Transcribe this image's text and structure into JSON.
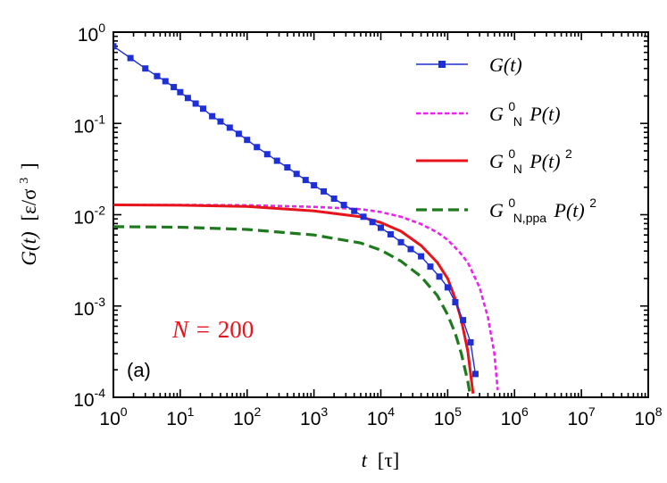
{
  "chart_data": {
    "type": "line",
    "xscale": "log",
    "yscale": "log",
    "xlim": [
      1,
      100000000
    ],
    "ylim": [
      0.0001,
      1
    ],
    "x_ticks": [
      {
        "mant": "10",
        "exp": "0",
        "value": 1
      },
      {
        "mant": "10",
        "exp": "1",
        "value": 10
      },
      {
        "mant": "10",
        "exp": "2",
        "value": 100
      },
      {
        "mant": "10",
        "exp": "3",
        "value": 1000
      },
      {
        "mant": "10",
        "exp": "4",
        "value": 10000
      },
      {
        "mant": "10",
        "exp": "5",
        "value": 100000
      },
      {
        "mant": "10",
        "exp": "6",
        "value": 1000000
      },
      {
        "mant": "10",
        "exp": "7",
        "value": 10000000
      },
      {
        "mant": "10",
        "exp": "8",
        "value": 100000000
      }
    ],
    "y_ticks": [
      {
        "mant": "10",
        "exp": "0",
        "value": 1
      },
      {
        "mant": "10",
        "exp": "-1",
        "value": 0.1
      },
      {
        "mant": "10",
        "exp": "-2",
        "value": 0.01
      },
      {
        "mant": "10",
        "exp": "-3",
        "value": 0.001
      },
      {
        "mant": "10",
        "exp": "-4",
        "value": 0.0001
      }
    ],
    "xlabel": {
      "var": "t",
      "unit": "[τ]"
    },
    "ylabel": {
      "var": "G(t)",
      "unit": "[ε/σ",
      "unit_exp": "3",
      "unit_close": "]"
    },
    "annotations": {
      "n_label": "N",
      "n_eq": "=",
      "n_value": "200",
      "panel": "(a)"
    },
    "legend_position": "top-right",
    "series": [
      {
        "name": "G(t)",
        "legend": {
          "base": "G(t)"
        },
        "color": "#1f2fd6",
        "style": "solid-markers",
        "x": [
          1,
          1.8,
          3,
          4.5,
          6,
          8,
          10,
          13,
          17,
          22,
          30,
          40,
          55,
          75,
          100,
          140,
          200,
          280,
          400,
          550,
          750,
          1000,
          1400,
          2000,
          2800,
          4000,
          5500,
          7500,
          10000,
          14000,
          20000,
          28000,
          40000,
          55000,
          75000,
          100000,
          130000,
          170000,
          220000,
          260000
        ],
        "values": [
          0.7,
          0.52,
          0.4,
          0.33,
          0.29,
          0.25,
          0.22,
          0.19,
          0.165,
          0.145,
          0.12,
          0.105,
          0.09,
          0.077,
          0.066,
          0.055,
          0.046,
          0.039,
          0.033,
          0.028,
          0.024,
          0.021,
          0.018,
          0.015,
          0.0128,
          0.011,
          0.0095,
          0.0083,
          0.0072,
          0.0061,
          0.005,
          0.0042,
          0.0035,
          0.0027,
          0.0021,
          0.0016,
          0.0011,
          0.0007,
          0.0004,
          0.00018
        ]
      },
      {
        "name": "G_N^0 P(t)",
        "legend": {
          "base": "G",
          "sub": "N",
          "sup": "0",
          "rest": "P(t)"
        },
        "color": "#ee22ee",
        "style": "dotted",
        "x": [
          1,
          10,
          100,
          1000,
          5000,
          10000,
          20000,
          40000,
          70000,
          100000,
          150000,
          200000,
          300000,
          400000,
          500000,
          560000
        ],
        "values": [
          0.0128,
          0.0128,
          0.0127,
          0.0122,
          0.0115,
          0.0107,
          0.0095,
          0.0079,
          0.0064,
          0.0053,
          0.0039,
          0.003,
          0.0016,
          0.00075,
          0.0003,
          0.00012
        ]
      },
      {
        "name": "G_N^0 P(t)^2",
        "legend": {
          "base": "G",
          "sub": "N",
          "sup": "0",
          "rest": "P(t)",
          "rest_sup": "2"
        },
        "color": "#e8141c",
        "style": "solid",
        "x": [
          1,
          10,
          100,
          1000,
          5000,
          10000,
          20000,
          40000,
          70000,
          100000,
          130000,
          160000,
          200000,
          240000
        ],
        "values": [
          0.0128,
          0.0127,
          0.0123,
          0.011,
          0.0095,
          0.0082,
          0.0066,
          0.0046,
          0.003,
          0.002,
          0.0012,
          0.0007,
          0.00032,
          0.00011
        ]
      },
      {
        "name": "G_N,ppa^0 P(t)^2",
        "legend": {
          "base": "G",
          "sub": "N,ppa",
          "sup": "0",
          "rest": "P(t)",
          "rest_sup": "2"
        },
        "color": "#1f7a1f",
        "style": "dashed",
        "x": [
          1,
          10,
          100,
          1000,
          5000,
          10000,
          20000,
          40000,
          70000,
          100000,
          130000,
          160000,
          200000,
          220000
        ],
        "values": [
          0.0074,
          0.0073,
          0.0069,
          0.006,
          0.0049,
          0.0041,
          0.0031,
          0.0021,
          0.0013,
          0.0008,
          0.0005,
          0.0003,
          0.00015,
          0.0001
        ]
      }
    ]
  }
}
